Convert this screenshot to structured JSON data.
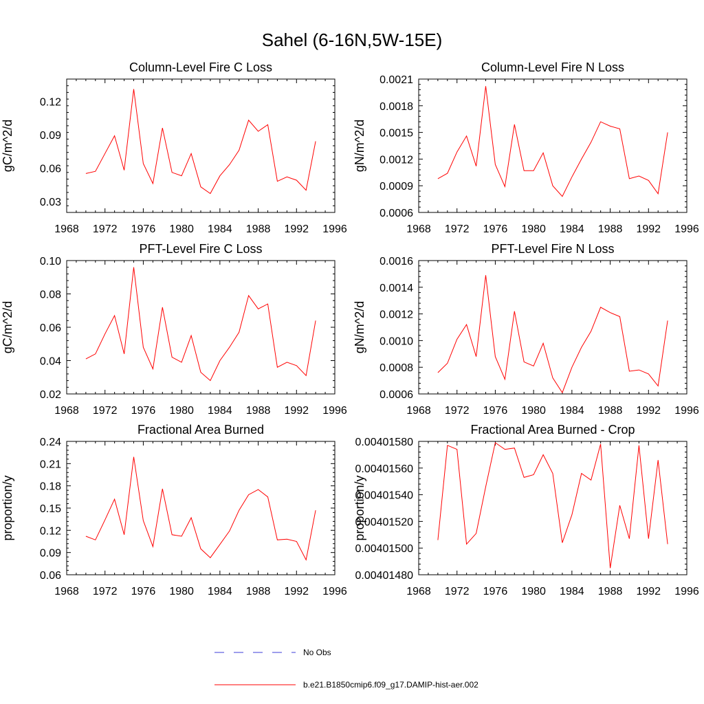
{
  "figure": {
    "title": "Sahel (6-16N,5W-15E)"
  },
  "legend": {
    "items": [
      {
        "label": "No Obs",
        "color": "#3b3bd8",
        "style": "dashed"
      },
      {
        "label": "b.e21.B1850cmip6.f09_g17.DAMIP-hist-aer.002",
        "color": "#ff0000",
        "style": "solid"
      }
    ]
  },
  "chart_data": [
    {
      "type": "line",
      "title": "Column-Level Fire C Loss",
      "ylabel": "gC/m^2/d",
      "xlabel": "",
      "xlim": [
        1968,
        1996
      ],
      "ylim": [
        0.02,
        0.14
      ],
      "xticks": [
        "1968",
        "1972",
        "1976",
        "1980",
        "1984",
        "1988",
        "1992",
        "1996"
      ],
      "yticks": [
        "0.03",
        "0.06",
        "0.09",
        "0.12"
      ],
      "grid": false,
      "series": [
        {
          "color": "#ff0000",
          "x": [
            1970,
            1971,
            1972,
            1973,
            1974,
            1975,
            1976,
            1977,
            1978,
            1979,
            1980,
            1981,
            1982,
            1983,
            1984,
            1985,
            1986,
            1987,
            1988,
            1989,
            1990,
            1991,
            1992,
            1993,
            1994
          ],
          "values": [
            0.055,
            0.057,
            0.073,
            0.089,
            0.058,
            0.131,
            0.064,
            0.046,
            0.096,
            0.056,
            0.053,
            0.073,
            0.043,
            0.037,
            0.053,
            0.063,
            0.076,
            0.103,
            0.093,
            0.099,
            0.048,
            0.052,
            0.049,
            0.04,
            0.084
          ]
        }
      ]
    },
    {
      "type": "line",
      "title": "Column-Level Fire N Loss",
      "ylabel": "gN/m^2/d",
      "xlabel": "",
      "xlim": [
        1968,
        1996
      ],
      "ylim": [
        0.0006,
        0.0021
      ],
      "xticks": [
        "1968",
        "1972",
        "1976",
        "1980",
        "1984",
        "1988",
        "1992",
        "1996"
      ],
      "yticks": [
        "0.0006",
        "0.0009",
        "0.0012",
        "0.0015",
        "0.0018",
        "0.0021"
      ],
      "grid": false,
      "series": [
        {
          "color": "#ff0000",
          "x": [
            1970,
            1971,
            1972,
            1973,
            1974,
            1975,
            1976,
            1977,
            1978,
            1979,
            1980,
            1981,
            1982,
            1983,
            1984,
            1985,
            1986,
            1987,
            1988,
            1989,
            1990,
            1991,
            1992,
            1993,
            1994
          ],
          "values": [
            0.00098,
            0.00104,
            0.00128,
            0.00146,
            0.00112,
            0.00202,
            0.00114,
            0.00089,
            0.00159,
            0.00107,
            0.00107,
            0.00127,
            0.0009,
            0.00078,
            0.001,
            0.0012,
            0.00139,
            0.00162,
            0.00157,
            0.00154,
            0.00098,
            0.00101,
            0.00096,
            0.00081,
            0.0015
          ]
        }
      ]
    },
    {
      "type": "line",
      "title": "PFT-Level Fire C Loss",
      "ylabel": "gC/m^2/d",
      "xlabel": "",
      "xlim": [
        1968,
        1996
      ],
      "ylim": [
        0.02,
        0.1
      ],
      "xticks": [
        "1968",
        "1972",
        "1976",
        "1980",
        "1984",
        "1988",
        "1992",
        "1996"
      ],
      "yticks": [
        "0.02",
        "0.04",
        "0.06",
        "0.08",
        "0.10"
      ],
      "grid": false,
      "series": [
        {
          "color": "#ff0000",
          "x": [
            1970,
            1971,
            1972,
            1973,
            1974,
            1975,
            1976,
            1977,
            1978,
            1979,
            1980,
            1981,
            1982,
            1983,
            1984,
            1985,
            1986,
            1987,
            1988,
            1989,
            1990,
            1991,
            1992,
            1993,
            1994
          ],
          "values": [
            0.041,
            0.044,
            0.056,
            0.067,
            0.044,
            0.096,
            0.048,
            0.035,
            0.072,
            0.042,
            0.039,
            0.055,
            0.033,
            0.028,
            0.04,
            0.048,
            0.057,
            0.079,
            0.071,
            0.074,
            0.036,
            0.039,
            0.037,
            0.031,
            0.064
          ]
        }
      ]
    },
    {
      "type": "line",
      "title": "PFT-Level Fire N Loss",
      "ylabel": "gN/m^2/d",
      "xlabel": "",
      "xlim": [
        1968,
        1996
      ],
      "ylim": [
        0.0006,
        0.0016
      ],
      "xticks": [
        "1968",
        "1972",
        "1976",
        "1980",
        "1984",
        "1988",
        "1992",
        "1996"
      ],
      "yticks": [
        "0.0006",
        "0.0008",
        "0.0010",
        "0.0012",
        "0.0014",
        "0.0016"
      ],
      "grid": false,
      "series": [
        {
          "color": "#ff0000",
          "x": [
            1970,
            1971,
            1972,
            1973,
            1974,
            1975,
            1976,
            1977,
            1978,
            1979,
            1980,
            1981,
            1982,
            1983,
            1984,
            1985,
            1986,
            1987,
            1988,
            1989,
            1990,
            1991,
            1992,
            1993,
            1994
          ],
          "values": [
            0.00076,
            0.00083,
            0.00101,
            0.00112,
            0.00088,
            0.00149,
            0.00088,
            0.00071,
            0.00122,
            0.00084,
            0.00081,
            0.00098,
            0.00072,
            0.00061,
            0.0008,
            0.00095,
            0.00107,
            0.00125,
            0.00121,
            0.00118,
            0.00077,
            0.00078,
            0.00075,
            0.00066,
            0.00115
          ]
        }
      ]
    },
    {
      "type": "line",
      "title": "Fractional Area Burned",
      "ylabel": "proportion/y",
      "xlabel": "",
      "xlim": [
        1968,
        1996
      ],
      "ylim": [
        0.06,
        0.24
      ],
      "xticks": [
        "1968",
        "1972",
        "1976",
        "1980",
        "1984",
        "1988",
        "1992",
        "1996"
      ],
      "yticks": [
        "0.06",
        "0.09",
        "0.12",
        "0.15",
        "0.18",
        "0.21",
        "0.24"
      ],
      "grid": false,
      "series": [
        {
          "color": "#ff0000",
          "x": [
            1970,
            1971,
            1972,
            1973,
            1974,
            1975,
            1976,
            1977,
            1978,
            1979,
            1980,
            1981,
            1982,
            1983,
            1984,
            1985,
            1986,
            1987,
            1988,
            1989,
            1990,
            1991,
            1992,
            1993,
            1994
          ],
          "values": [
            0.112,
            0.107,
            0.134,
            0.162,
            0.114,
            0.219,
            0.133,
            0.098,
            0.176,
            0.114,
            0.112,
            0.137,
            0.095,
            0.083,
            0.101,
            0.119,
            0.147,
            0.168,
            0.175,
            0.165,
            0.107,
            0.108,
            0.105,
            0.08,
            0.147
          ]
        }
      ]
    },
    {
      "type": "line",
      "title": "Fractional Area Burned - Crop",
      "ylabel": "proportion/y",
      "xlabel": "",
      "xlim": [
        1968,
        1996
      ],
      "ylim": [
        0.0040148,
        0.0040158
      ],
      "xticks": [
        "1968",
        "1972",
        "1976",
        "1980",
        "1984",
        "1988",
        "1992",
        "1996"
      ],
      "yticks": [
        "0.00401480",
        "0.00401500",
        "0.00401520",
        "0.00401540",
        "0.00401560",
        "0.00401580"
      ],
      "grid": false,
      "series": [
        {
          "color": "#ff0000",
          "x": [
            1970,
            1971,
            1972,
            1973,
            1974,
            1975,
            1976,
            1977,
            1978,
            1979,
            1980,
            1981,
            1982,
            1983,
            1984,
            1985,
            1986,
            1987,
            1988,
            1989,
            1990,
            1991,
            1992,
            1993,
            1994
          ],
          "values": [
            0.00401506,
            0.00401577,
            0.00401574,
            0.00401503,
            0.00401511,
            0.00401546,
            0.00401579,
            0.00401574,
            0.00401575,
            0.00401553,
            0.00401555,
            0.0040157,
            0.00401556,
            0.00401504,
            0.00401525,
            0.00401556,
            0.00401551,
            0.00401578,
            0.00401485,
            0.00401532,
            0.00401507,
            0.00401577,
            0.00401507,
            0.00401566,
            0.00401503
          ]
        }
      ]
    }
  ]
}
